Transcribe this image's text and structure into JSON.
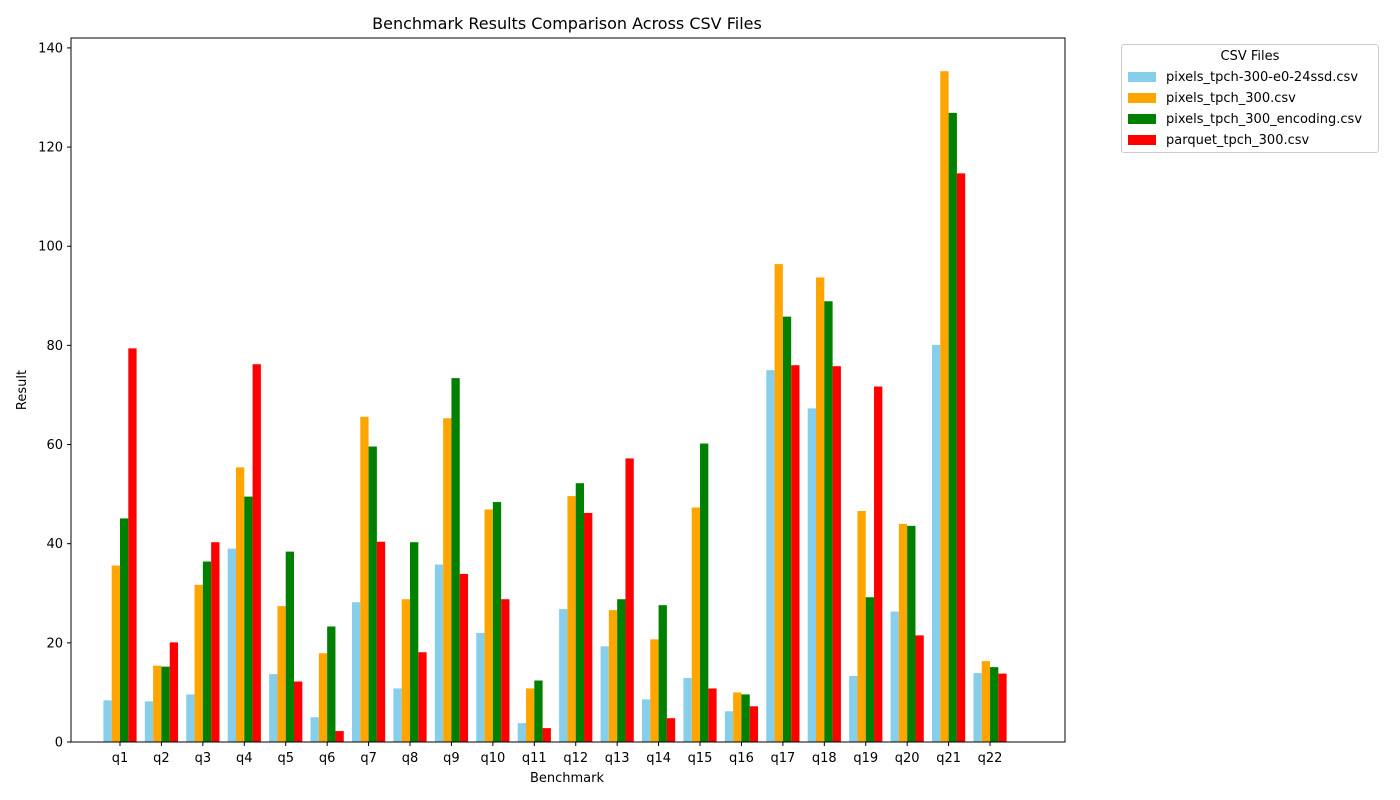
{
  "chart_data": {
    "type": "bar",
    "title": "Benchmark Results Comparison Across CSV Files",
    "xlabel": "Benchmark",
    "ylabel": "Result",
    "ylim": [
      0,
      142
    ],
    "yticks": [
      0,
      20,
      40,
      60,
      80,
      100,
      120,
      140
    ],
    "grid": false,
    "legend_title": "CSV Files",
    "legend_position": "outside-top-right",
    "categories": [
      "q1",
      "q2",
      "q3",
      "q4",
      "q5",
      "q6",
      "q7",
      "q8",
      "q9",
      "q10",
      "q11",
      "q12",
      "q13",
      "q14",
      "q15",
      "q16",
      "q17",
      "q18",
      "q19",
      "q20",
      "q21",
      "q22"
    ],
    "series": [
      {
        "name": "pixels_tpch-300-e0-24ssd.csv",
        "color": "#87ceeb",
        "values": [
          8.4,
          8.2,
          9.6,
          39.0,
          13.7,
          5.0,
          28.2,
          10.8,
          35.8,
          22.0,
          3.8,
          26.8,
          19.3,
          8.6,
          12.9,
          6.2,
          75.0,
          67.3,
          13.3,
          26.3,
          80.1,
          13.9
        ]
      },
      {
        "name": "pixels_tpch_300.csv",
        "color": "#ffa500",
        "values": [
          35.6,
          15.4,
          31.7,
          55.4,
          27.4,
          17.9,
          65.6,
          28.8,
          65.3,
          46.9,
          10.8,
          49.6,
          26.6,
          20.7,
          47.3,
          10.0,
          96.4,
          93.7,
          46.6,
          44.0,
          135.3,
          16.3
        ]
      },
      {
        "name": "pixels_tpch_300_encoding.csv",
        "color": "#008000",
        "values": [
          45.1,
          15.2,
          36.4,
          49.5,
          38.4,
          23.3,
          59.6,
          40.3,
          73.4,
          48.4,
          12.4,
          52.2,
          28.8,
          27.6,
          60.2,
          9.6,
          85.8,
          88.9,
          29.2,
          43.6,
          126.9,
          15.1
        ]
      },
      {
        "name": "parquet_tpch_300.csv",
        "color": "#ff0000",
        "values": [
          79.4,
          20.1,
          40.3,
          76.2,
          12.2,
          2.2,
          40.4,
          18.1,
          33.9,
          28.8,
          2.8,
          46.2,
          57.2,
          4.8,
          10.8,
          7.2,
          76.0,
          75.8,
          71.7,
          21.5,
          114.7,
          13.8
        ]
      }
    ]
  }
}
